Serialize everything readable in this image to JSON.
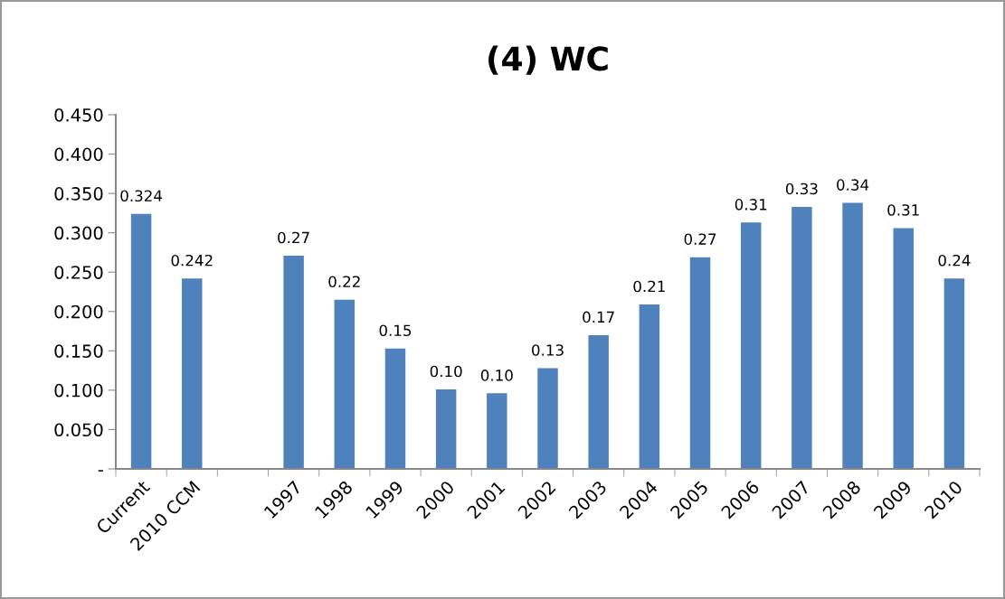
{
  "chart_data": {
    "type": "bar",
    "title": "(4) WC",
    "categories": [
      "Current",
      "2010 CCM",
      null,
      "1997",
      "1998",
      "1999",
      "2000",
      "2001",
      "2002",
      "2003",
      "2004",
      "2005",
      "2006",
      "2007",
      "2008",
      "2009",
      "2010"
    ],
    "values": [
      0.324,
      0.242,
      null,
      0.271,
      0.215,
      0.153,
      0.101,
      0.096,
      0.128,
      0.17,
      0.209,
      0.269,
      0.313,
      0.333,
      0.338,
      0.306,
      0.242
    ],
    "value_labels": [
      "0.324",
      "0.242",
      null,
      "0.27",
      "0.22",
      "0.15",
      "0.10",
      "0.10",
      "0.13",
      "0.17",
      "0.21",
      "0.27",
      "0.31",
      "0.33",
      "0.34",
      "0.31",
      "0.24"
    ],
    "color": "#4f81bd",
    "ylim": [
      0,
      0.45
    ],
    "yticks": [
      {
        "value": 0,
        "label": "-"
      },
      {
        "value": 0.05,
        "label": "0.050"
      },
      {
        "value": 0.1,
        "label": "0.100"
      },
      {
        "value": 0.15,
        "label": "0.150"
      },
      {
        "value": 0.2,
        "label": "0.200"
      },
      {
        "value": 0.25,
        "label": "0.250"
      },
      {
        "value": 0.3,
        "label": "0.300"
      },
      {
        "value": 0.35,
        "label": "0.350"
      },
      {
        "value": 0.4,
        "label": "0.400"
      },
      {
        "value": 0.45,
        "label": "0.450"
      }
    ],
    "grid": false
  }
}
